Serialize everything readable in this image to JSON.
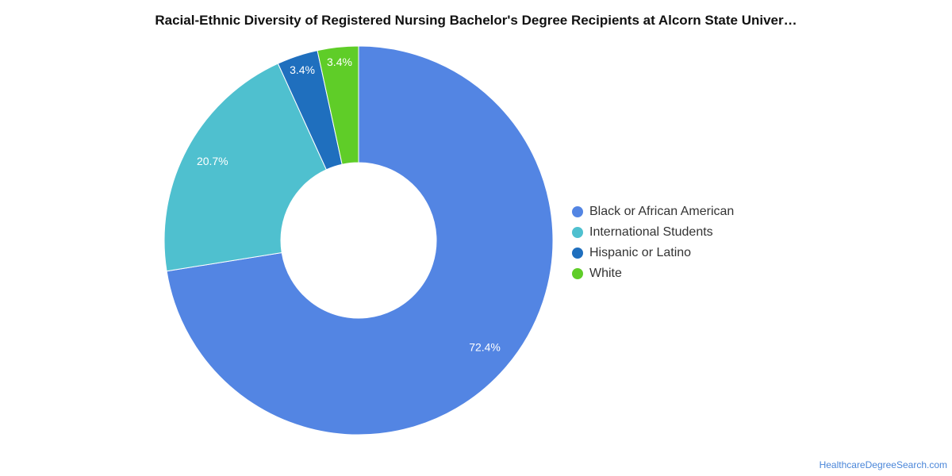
{
  "chart_data": {
    "type": "pie",
    "title": "Racial-Ethnic Diversity of Registered Nursing Bachelor's Degree Recipients at Alcorn State Univer…",
    "donut": true,
    "legend_position": "right",
    "slices": [
      {
        "label": "Black or African American",
        "value": 72.4,
        "value_label": "72.4%",
        "color": "#5385e3"
      },
      {
        "label": "International Students",
        "value": 20.7,
        "value_label": "20.7%",
        "color": "#4fc0cf"
      },
      {
        "label": "Hispanic or Latino",
        "value": 3.4,
        "value_label": "3.4%",
        "color": "#1f6fbe"
      },
      {
        "label": "White",
        "value": 3.4,
        "value_label": "3.4%",
        "color": "#5fcd28"
      }
    ]
  },
  "footer": {
    "source": "HealthcareDegreeSearch.com"
  }
}
